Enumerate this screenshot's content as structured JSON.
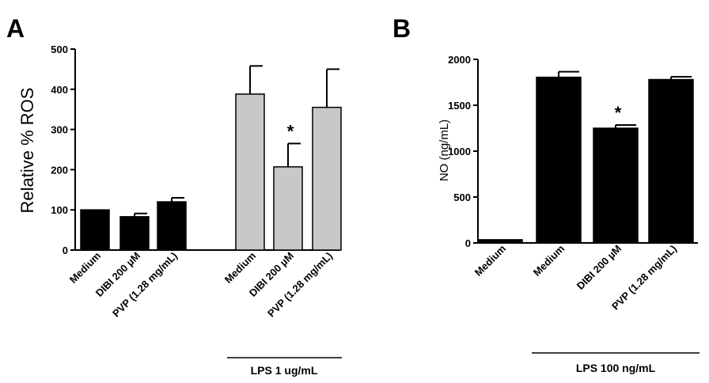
{
  "chart_data": [
    {
      "type": "bar",
      "panel": "A",
      "ylabel": "Relative % ROS",
      "ylim": [
        0,
        500
      ],
      "yticks": [
        0,
        100,
        200,
        300,
        400,
        500
      ],
      "categories": [
        "Medium",
        "DIBI 200 µM",
        "PVP (1.28 mg/mL)",
        "Medium",
        "DIBI 200 µM",
        "PVP (1.28 mg/mL)"
      ],
      "values": [
        100,
        83,
        120,
        388,
        207,
        355
      ],
      "errors": [
        0,
        8,
        10,
        70,
        58,
        95
      ],
      "bar_colors": [
        "#000000",
        "#000000",
        "#000000",
        "#c8c8c8",
        "#c8c8c8",
        "#c8c8c8"
      ],
      "significance": [
        "",
        "",
        "",
        "",
        "*",
        ""
      ],
      "group_label": "LPS 1 ug/mL",
      "group_label_covers": [
        3,
        4,
        5
      ]
    },
    {
      "type": "bar",
      "panel": "B",
      "ylabel": "NO (ng/mL)",
      "ylim": [
        0,
        2000
      ],
      "yticks": [
        0,
        500,
        1000,
        1500,
        2000
      ],
      "categories": [
        "Medium",
        "Medium",
        "DIBI 200 µM",
        "PVP (1.28 mg/mL)"
      ],
      "values": [
        35,
        1805,
        1250,
        1780
      ],
      "errors": [
        0,
        60,
        35,
        30
      ],
      "bar_colors": [
        "#000000",
        "#000000",
        "#000000",
        "#000000"
      ],
      "significance": [
        "",
        "",
        "*",
        ""
      ],
      "group_label": "LPS  100 ng/mL",
      "group_label_covers": [
        1,
        2,
        3
      ]
    }
  ]
}
